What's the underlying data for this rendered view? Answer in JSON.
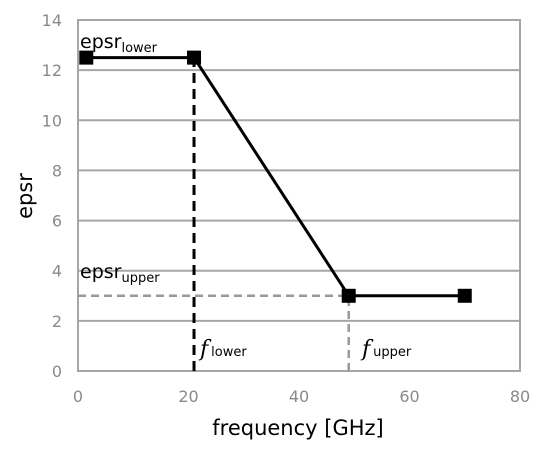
{
  "chart_data": {
    "type": "line",
    "title": "",
    "xlabel": "frequency [GHz]",
    "ylabel": "epsr",
    "xlim": [
      0,
      80
    ],
    "ylim": [
      0,
      14
    ],
    "xticks": [
      0,
      20,
      40,
      60,
      80
    ],
    "yticks": [
      0,
      2,
      4,
      6,
      8,
      10,
      12,
      14
    ],
    "grid": "horizontal",
    "series": [
      {
        "x": [
          1.5,
          21,
          49,
          70
        ],
        "y": [
          12.5,
          12.5,
          3,
          3
        ],
        "color": "#000000",
        "marker": "square"
      }
    ],
    "reference_lines": [
      {
        "x": 21,
        "y_from": 0,
        "y_to": 12.5,
        "style": "dashed",
        "color": "#000000"
      },
      {
        "x": 49,
        "y_from": 0,
        "y_to": 3,
        "style": "dashed",
        "color": "#999999"
      },
      {
        "y": 3,
        "x_from": 0,
        "x_to": 49,
        "style": "dashed",
        "color": "#999999"
      }
    ],
    "annotations": [
      {
        "base": "epsr",
        "sub": "lower"
      },
      {
        "base": "epsr",
        "sub": "upper"
      },
      {
        "base": "f",
        "sub": "lower"
      },
      {
        "base": "f",
        "sub": "upper"
      }
    ]
  },
  "colors": {
    "grid": "#a6a6a6",
    "frame": "#a6a6a6",
    "tick_text": "#8a8a8a",
    "dashed_gray": "#999999"
  }
}
